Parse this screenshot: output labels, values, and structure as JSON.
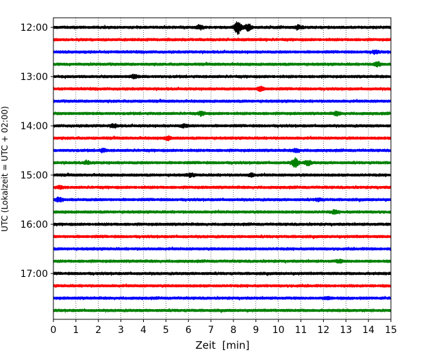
{
  "chart_data": {
    "type": "line",
    "title": "",
    "xlabel": "Zeit  [min]",
    "ylabel": "UTC (Lokalzeit = UTC + 02:00)",
    "xlim": [
      0,
      15
    ],
    "x_ticks": [
      "0",
      "1",
      "2",
      "3",
      "4",
      "5",
      "6",
      "7",
      "8",
      "9",
      "10",
      "11",
      "12",
      "13",
      "14",
      "15"
    ],
    "y_tick_labels": [
      "12:00",
      "13:00",
      "14:00",
      "15:00",
      "16:00",
      "17:00"
    ],
    "y_tick_times_utc": [
      "12:00",
      "13:00",
      "14:00",
      "15:00",
      "16:00",
      "17:00"
    ],
    "trace_interval_minutes": 15,
    "trace_colors": [
      "#000000",
      "#ff0000",
      "#0000ff",
      "#008000"
    ],
    "grid": "vertical dotted lines at each minute",
    "series": [
      {
        "start": "12:00",
        "color": "black",
        "events": [
          {
            "x": 8.2,
            "amp": 3.6
          },
          {
            "x": 8.65,
            "amp": 1.6
          },
          {
            "x": 6.5,
            "amp": 1.0
          },
          {
            "x": 10.9,
            "amp": 0.8
          }
        ]
      },
      {
        "start": "12:15",
        "color": "red",
        "events": []
      },
      {
        "start": "12:30",
        "color": "blue",
        "events": [
          {
            "x": 14.3,
            "amp": 0.7
          }
        ]
      },
      {
        "start": "12:45",
        "color": "green",
        "events": [
          {
            "x": 14.4,
            "amp": 1.1
          }
        ]
      },
      {
        "start": "13:00",
        "color": "black",
        "events": [
          {
            "x": 3.6,
            "amp": 0.8
          }
        ]
      },
      {
        "start": "13:15",
        "color": "red",
        "events": [
          {
            "x": 9.2,
            "amp": 1.0
          }
        ]
      },
      {
        "start": "13:30",
        "color": "blue",
        "events": []
      },
      {
        "start": "13:45",
        "color": "green",
        "events": [
          {
            "x": 6.6,
            "amp": 0.9
          },
          {
            "x": 12.6,
            "amp": 0.8
          }
        ]
      },
      {
        "start": "14:00",
        "color": "black",
        "events": [
          {
            "x": 2.7,
            "amp": 0.8
          },
          {
            "x": 5.8,
            "amp": 0.7
          }
        ]
      },
      {
        "start": "14:15",
        "color": "red",
        "events": [
          {
            "x": 5.1,
            "amp": 0.8
          }
        ]
      },
      {
        "start": "14:30",
        "color": "blue",
        "events": [
          {
            "x": 2.2,
            "amp": 0.7
          },
          {
            "x": 10.8,
            "amp": 0.8
          }
        ]
      },
      {
        "start": "14:45",
        "color": "green",
        "events": [
          {
            "x": 10.75,
            "amp": 2.3
          },
          {
            "x": 11.3,
            "amp": 1.2
          },
          {
            "x": 1.5,
            "amp": 0.7
          }
        ]
      },
      {
        "start": "15:00",
        "color": "black",
        "events": [
          {
            "x": 6.1,
            "amp": 0.7
          },
          {
            "x": 8.8,
            "amp": 0.7
          }
        ]
      },
      {
        "start": "15:15",
        "color": "red",
        "events": [
          {
            "x": 0.3,
            "amp": 0.6
          }
        ]
      },
      {
        "start": "15:30",
        "color": "blue",
        "events": [
          {
            "x": 0.25,
            "amp": 1.0
          },
          {
            "x": 11.8,
            "amp": 0.6
          }
        ]
      },
      {
        "start": "15:45",
        "color": "green",
        "events": [
          {
            "x": 12.5,
            "amp": 0.7
          }
        ]
      },
      {
        "start": "16:00",
        "color": "black",
        "events": []
      },
      {
        "start": "16:15",
        "color": "red",
        "events": []
      },
      {
        "start": "16:30",
        "color": "blue",
        "events": []
      },
      {
        "start": "16:45",
        "color": "green",
        "events": [
          {
            "x": 12.7,
            "amp": 0.6
          }
        ]
      },
      {
        "start": "17:00",
        "color": "black",
        "events": []
      },
      {
        "start": "17:15",
        "color": "red",
        "events": []
      },
      {
        "start": "17:30",
        "color": "blue",
        "events": [
          {
            "x": 12.2,
            "amp": 0.5
          }
        ]
      },
      {
        "start": "17:45",
        "color": "green",
        "events": []
      }
    ]
  }
}
